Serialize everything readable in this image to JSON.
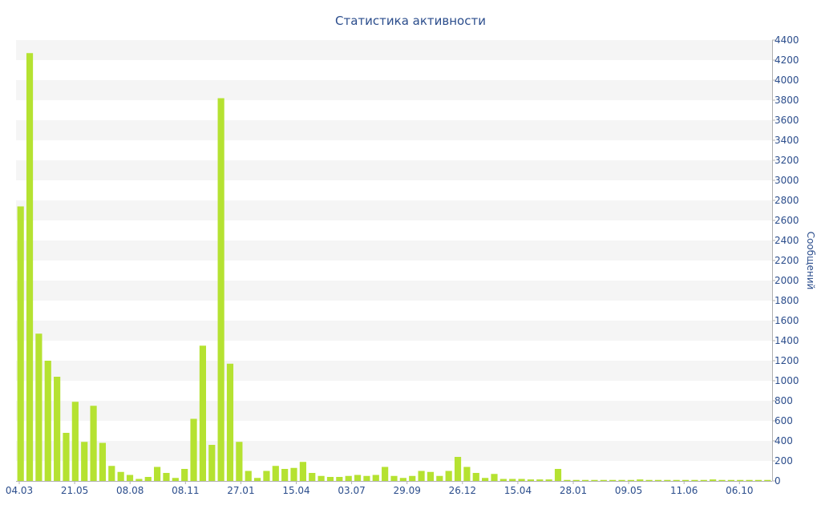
{
  "chart_data": {
    "type": "bar",
    "title": "Статистика активности",
    "xlabel": "",
    "ylabel": "Сообщений",
    "ylim": [
      0,
      4400
    ],
    "y_ticks": [
      0,
      200,
      400,
      600,
      800,
      1000,
      1200,
      1400,
      1600,
      1800,
      2000,
      2200,
      2400,
      2600,
      2800,
      3000,
      3200,
      3400,
      3600,
      3800,
      4000,
      4200,
      4400
    ],
    "x_tick_labels": [
      "04.03",
      "21.05",
      "08.08",
      "08.11",
      "27.01",
      "15.04",
      "03.07",
      "29.09",
      "26.12",
      "15.04",
      "28.01",
      "09.05",
      "11.06",
      "06.10"
    ],
    "y_axis_position": "right",
    "grid": "horizontal alternating bands",
    "bar_color": "#b5e231",
    "text_color": "#2b4d8c",
    "series": [
      {
        "values": [
          2740,
          4270,
          1470,
          1200,
          1040,
          480,
          790,
          390,
          750,
          380,
          150,
          90,
          60,
          20,
          40,
          140,
          80,
          30,
          120,
          620,
          1350,
          360,
          3820,
          1170,
          390,
          100,
          30,
          100,
          150,
          120,
          130,
          190,
          80,
          50,
          40,
          40,
          50,
          60,
          50,
          60,
          140,
          50,
          30,
          50,
          100,
          90,
          50,
          100,
          240,
          140,
          80,
          30,
          70,
          20,
          20,
          20,
          15,
          15,
          15,
          120,
          10,
          10,
          10,
          10,
          10,
          10,
          10,
          10,
          15,
          10,
          10,
          10,
          10,
          10,
          10,
          10,
          15,
          10,
          10,
          10,
          10,
          10,
          10
        ]
      }
    ]
  }
}
